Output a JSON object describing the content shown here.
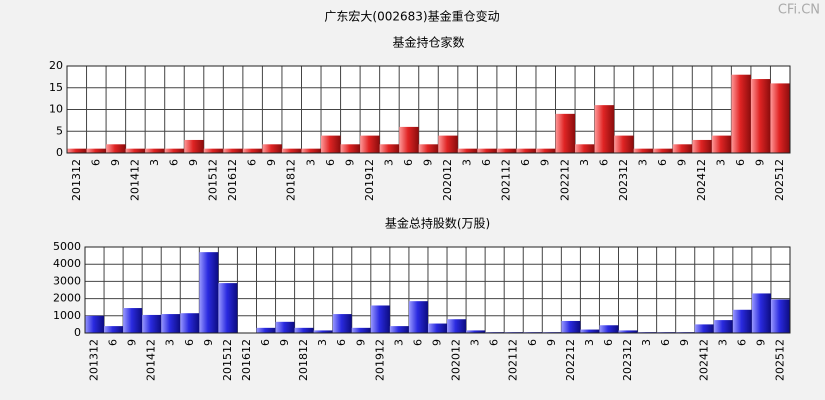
{
  "title": "广东宏大(002683)基金重仓变动",
  "watermark": "CFi.CN",
  "chart_data": [
    {
      "type": "bar",
      "title": "基金持仓家数",
      "color": "#e02424",
      "categories": [
        "201312",
        "6",
        "9",
        "201412",
        "3",
        "6",
        "9",
        "201512",
        "201612",
        "6",
        "9",
        "201812",
        "3",
        "6",
        "9",
        "201912",
        "3",
        "6",
        "9",
        "202012",
        "3",
        "6",
        "202112",
        "6",
        "9",
        "202212",
        "3",
        "6",
        "202312",
        "3",
        "6",
        "9",
        "202412",
        "3",
        "6",
        "9",
        "202512"
      ],
      "values": [
        1,
        1,
        2,
        1,
        1,
        1,
        3,
        1,
        1,
        1,
        2,
        1,
        1,
        4,
        2,
        4,
        2,
        6,
        2,
        4,
        1,
        1,
        1,
        1,
        1,
        9,
        2,
        11,
        4,
        1,
        1,
        2,
        3,
        4,
        18,
        17,
        16
      ],
      "ylim": [
        0,
        20
      ],
      "yticks": [
        0,
        5,
        10,
        15,
        20
      ],
      "grid": true
    },
    {
      "type": "bar",
      "title": "基金总持股数(万股)",
      "color": "#2a2ae0",
      "categories": [
        "201312",
        "6",
        "9",
        "201412",
        "3",
        "6",
        "9",
        "201512",
        "201612",
        "6",
        "9",
        "201812",
        "3",
        "6",
        "9",
        "201912",
        "3",
        "6",
        "9",
        "202012",
        "3",
        "6",
        "202112",
        "6",
        "9",
        "202212",
        "3",
        "6",
        "202312",
        "3",
        "6",
        "9",
        "202412",
        "3",
        "6",
        "9",
        "202512"
      ],
      "values": [
        1000,
        400,
        1450,
        1050,
        1100,
        1150,
        4700,
        2900,
        20,
        300,
        650,
        300,
        150,
        1100,
        300,
        1600,
        400,
        1850,
        550,
        800,
        150,
        50,
        50,
        50,
        50,
        700,
        200,
        450,
        150,
        50,
        50,
        50,
        500,
        750,
        1350,
        2300,
        1950
      ],
      "ylim": [
        0,
        5000
      ],
      "yticks": [
        0,
        1000,
        2000,
        3000,
        4000,
        5000
      ],
      "grid": true
    }
  ]
}
